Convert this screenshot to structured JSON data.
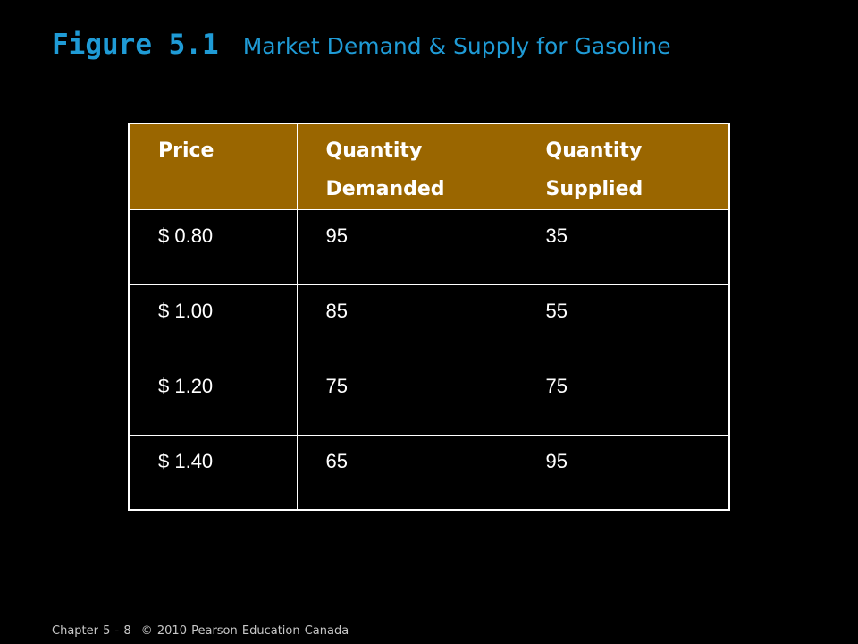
{
  "title": {
    "figure_label": "Figure 5.1",
    "caption": "Market Demand & Supply for Gasoline"
  },
  "table": {
    "headers": [
      [
        "Price"
      ],
      [
        "Quantity",
        "Demanded"
      ],
      [
        "Quantity",
        "Supplied"
      ]
    ],
    "rows": [
      [
        "$ 0.80",
        "95",
        "35"
      ],
      [
        "$ 1.00",
        "85",
        "55"
      ],
      [
        "$ 1.20",
        "75",
        "75"
      ],
      [
        "$ 1.40",
        "65",
        "95"
      ]
    ]
  },
  "footer": {
    "chapter": "Chapter 5 - 8",
    "copyright": "© 2010 Pearson Education Canada"
  },
  "colors": {
    "title": "#1f9bd6",
    "header_fill": "#9a6600",
    "background": "#000000",
    "border": "#ffffff"
  }
}
